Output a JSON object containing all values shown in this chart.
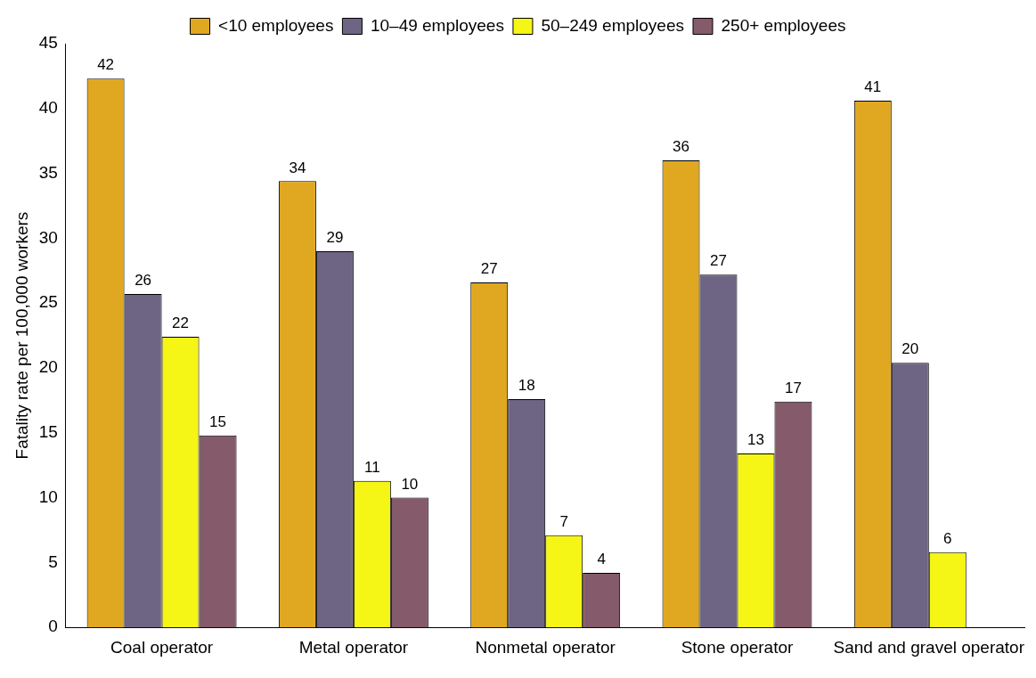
{
  "chart_data": {
    "type": "bar",
    "ylabel": "Fatality rate per 100,000 workers",
    "categories": [
      "Coal operator",
      "Metal operator",
      "Nonmetal operator",
      "Stone operator",
      "Sand and gravel operator"
    ],
    "series": [
      {
        "name": "<10 employees",
        "color": "#e0a820",
        "values": [
          42.3,
          34.4,
          26.6,
          36.0,
          40.6
        ],
        "value_labels": [
          "42",
          "34",
          "27",
          "36",
          "41"
        ]
      },
      {
        "name": "10–49 employees",
        "color": "#6e6585",
        "values": [
          25.7,
          29.0,
          17.6,
          27.2,
          20.4
        ],
        "value_labels": [
          "26",
          "29",
          "18",
          "27",
          "20"
        ]
      },
      {
        "name": "50–249 employees",
        "color": "#f5f516",
        "values": [
          22.4,
          11.3,
          7.1,
          13.4,
          5.8
        ],
        "value_labels": [
          "22",
          "11",
          "7",
          "13",
          "6"
        ]
      },
      {
        "name": "250+ employees",
        "color": "#855a6a",
        "values": [
          14.8,
          10.0,
          4.2,
          17.4,
          null
        ],
        "value_labels": [
          "15",
          "10",
          "4",
          "17",
          null
        ]
      }
    ],
    "ylim": [
      0,
      45
    ],
    "yticks": [
      0,
      5,
      10,
      15,
      20,
      25,
      30,
      35,
      40,
      45
    ],
    "grid": false,
    "legend": "top"
  }
}
